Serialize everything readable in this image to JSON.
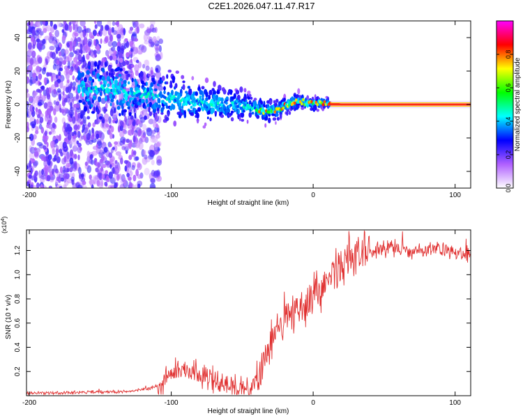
{
  "title": "C2E1.2026.047.11.47.R17",
  "chart_data": [
    {
      "type": "heatmap",
      "xlabel": "Height of straight line (km)",
      "ylabel": "Frequency (Hz)",
      "xlim": [
        -202,
        111
      ],
      "ylim": [
        -50,
        50
      ],
      "xticks": [
        -200,
        -100,
        0,
        100
      ],
      "yticks": [
        -40,
        -20,
        0,
        20,
        40
      ],
      "colorbar": {
        "label": "Normalized spectral amplitude",
        "range": [
          0,
          1
        ],
        "ticks": [
          "0.0",
          "0.2",
          "0.4",
          "0.6",
          "0.8"
        ],
        "tick_values": [
          0.0,
          0.2,
          0.4,
          0.6,
          0.8
        ],
        "colors": [
          "#ffffff",
          "#b060ff",
          "#0000ff",
          "#00ffff",
          "#00ff00",
          "#ffff00",
          "#ff0000",
          "#ff00ff"
        ]
      },
      "ridge": {
        "x": [
          -160,
          -150,
          -135,
          -120,
          -110,
          -100,
          -90,
          -80,
          -70,
          -60,
          -50,
          -40,
          -35,
          -30,
          -25,
          -20,
          -15,
          -10,
          -5,
          0,
          5,
          10,
          20,
          40,
          60,
          80,
          100,
          111
        ],
        "y": [
          8,
          9,
          8,
          6,
          5,
          4,
          2,
          1,
          0,
          0,
          -1,
          -3,
          -4,
          -4,
          -3,
          -1,
          1,
          2,
          1,
          0,
          1,
          1,
          0,
          0,
          0,
          0,
          0,
          0
        ]
      },
      "grid": false
    },
    {
      "type": "line",
      "xlabel": "Height of straight line (km)",
      "ylabel": "SNR (10 * v/v)",
      "multiplier": "(x10^4)",
      "xlim": [
        -202,
        111
      ],
      "ylim": [
        0.0,
        1.37
      ],
      "xticks": [
        -200,
        -100,
        0,
        100
      ],
      "yticks": [
        0.2,
        0.4,
        0.6,
        0.8,
        1.0,
        1.2
      ],
      "ytick_labels": [
        "0.2",
        "0.4",
        "0.6",
        "0.8",
        "1.0",
        "1.2"
      ],
      "color": "#e03030",
      "series": [
        {
          "x": [
            -202,
            -180,
            -160,
            -140,
            -125,
            -115,
            -108,
            -100,
            -95,
            -90,
            -85,
            -80,
            -75,
            -70,
            -65,
            -60,
            -55,
            -50,
            -47,
            -44,
            -40,
            -36,
            -32,
            -28,
            -24,
            -20,
            -15,
            -10,
            -5,
            0,
            5,
            10,
            15,
            20,
            25,
            30,
            35,
            40,
            45,
            50,
            55,
            60,
            65,
            70,
            75,
            80,
            85,
            90,
            95,
            100,
            105,
            111
          ],
          "values": [
            0.02,
            0.02,
            0.03,
            0.03,
            0.04,
            0.06,
            0.09,
            0.16,
            0.2,
            0.23,
            0.18,
            0.17,
            0.15,
            0.13,
            0.11,
            0.09,
            0.07,
            0.06,
            0.05,
            0.07,
            0.15,
            0.25,
            0.38,
            0.48,
            0.55,
            0.62,
            0.66,
            0.7,
            0.75,
            0.8,
            0.88,
            0.95,
            1.02,
            1.08,
            1.13,
            1.16,
            1.18,
            1.2,
            1.21,
            1.22,
            1.22,
            1.22,
            1.21,
            1.2,
            1.2,
            1.2,
            1.21,
            1.2,
            1.19,
            1.17,
            1.16,
            1.17
          ]
        }
      ]
    }
  ]
}
